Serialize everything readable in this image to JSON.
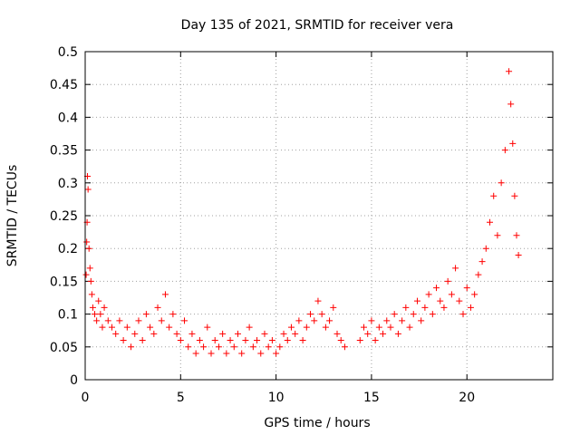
{
  "chart_data": {
    "type": "scatter",
    "title": "Day 135 of 2021, SRMTID for receiver vera",
    "xlabel": "GPS time / hours",
    "ylabel": "SRMTID / TECUs",
    "xlim": [
      0,
      24.5
    ],
    "ylim": [
      0,
      0.5
    ],
    "xticks": [
      0,
      5,
      10,
      15,
      20
    ],
    "xtick_labels": [
      "0",
      "5",
      "10",
      "15",
      "20"
    ],
    "yticks": [
      0,
      0.05,
      0.1,
      0.15,
      0.2,
      0.25,
      0.3,
      0.35,
      0.4,
      0.45,
      0.5
    ],
    "ytick_labels": [
      "0",
      "0.05",
      "0.1",
      "0.15",
      "0.2",
      "0.25",
      "0.3",
      "0.35",
      "0.4",
      "0.45",
      "0.5"
    ],
    "grid": true,
    "marker": "plus",
    "color": "#ff0000",
    "series": [
      {
        "name": "SRMTID",
        "points": [
          [
            0.05,
            0.16
          ],
          [
            0.08,
            0.21
          ],
          [
            0.1,
            0.24
          ],
          [
            0.12,
            0.31
          ],
          [
            0.15,
            0.29
          ],
          [
            0.2,
            0.2
          ],
          [
            0.25,
            0.17
          ],
          [
            0.3,
            0.15
          ],
          [
            0.35,
            0.13
          ],
          [
            0.4,
            0.11
          ],
          [
            0.5,
            0.1
          ],
          [
            0.6,
            0.09
          ],
          [
            0.7,
            0.12
          ],
          [
            0.8,
            0.1
          ],
          [
            0.9,
            0.08
          ],
          [
            1.0,
            0.11
          ],
          [
            1.2,
            0.09
          ],
          [
            1.4,
            0.08
          ],
          [
            1.6,
            0.07
          ],
          [
            1.8,
            0.09
          ],
          [
            2.0,
            0.06
          ],
          [
            2.2,
            0.08
          ],
          [
            2.4,
            0.05
          ],
          [
            2.6,
            0.07
          ],
          [
            2.8,
            0.09
          ],
          [
            3.0,
            0.06
          ],
          [
            3.2,
            0.1
          ],
          [
            3.4,
            0.08
          ],
          [
            3.6,
            0.07
          ],
          [
            3.8,
            0.11
          ],
          [
            4.0,
            0.09
          ],
          [
            4.2,
            0.13
          ],
          [
            4.4,
            0.08
          ],
          [
            4.6,
            0.1
          ],
          [
            4.8,
            0.07
          ],
          [
            5.0,
            0.06
          ],
          [
            5.2,
            0.09
          ],
          [
            5.4,
            0.05
          ],
          [
            5.6,
            0.07
          ],
          [
            5.8,
            0.04
          ],
          [
            6.0,
            0.06
          ],
          [
            6.2,
            0.05
          ],
          [
            6.4,
            0.08
          ],
          [
            6.6,
            0.04
          ],
          [
            6.8,
            0.06
          ],
          [
            7.0,
            0.05
          ],
          [
            7.2,
            0.07
          ],
          [
            7.4,
            0.04
          ],
          [
            7.6,
            0.06
          ],
          [
            7.8,
            0.05
          ],
          [
            8.0,
            0.07
          ],
          [
            8.2,
            0.04
          ],
          [
            8.4,
            0.06
          ],
          [
            8.6,
            0.08
          ],
          [
            8.8,
            0.05
          ],
          [
            9.0,
            0.06
          ],
          [
            9.2,
            0.04
          ],
          [
            9.4,
            0.07
          ],
          [
            9.6,
            0.05
          ],
          [
            9.8,
            0.06
          ],
          [
            10.0,
            0.04
          ],
          [
            10.2,
            0.05
          ],
          [
            10.4,
            0.07
          ],
          [
            10.6,
            0.06
          ],
          [
            10.8,
            0.08
          ],
          [
            11.0,
            0.07
          ],
          [
            11.2,
            0.09
          ],
          [
            11.4,
            0.06
          ],
          [
            11.6,
            0.08
          ],
          [
            11.8,
            0.1
          ],
          [
            12.0,
            0.09
          ],
          [
            12.2,
            0.12
          ],
          [
            12.4,
            0.1
          ],
          [
            12.6,
            0.08
          ],
          [
            12.8,
            0.09
          ],
          [
            13.0,
            0.11
          ],
          [
            13.2,
            0.07
          ],
          [
            13.4,
            0.06
          ],
          [
            13.6,
            0.05
          ],
          [
            14.4,
            0.06
          ],
          [
            14.6,
            0.08
          ],
          [
            14.8,
            0.07
          ],
          [
            15.0,
            0.09
          ],
          [
            15.2,
            0.06
          ],
          [
            15.4,
            0.08
          ],
          [
            15.6,
            0.07
          ],
          [
            15.8,
            0.09
          ],
          [
            16.0,
            0.08
          ],
          [
            16.2,
            0.1
          ],
          [
            16.4,
            0.07
          ],
          [
            16.6,
            0.09
          ],
          [
            16.8,
            0.11
          ],
          [
            17.0,
            0.08
          ],
          [
            17.2,
            0.1
          ],
          [
            17.4,
            0.12
          ],
          [
            17.6,
            0.09
          ],
          [
            17.8,
            0.11
          ],
          [
            18.0,
            0.13
          ],
          [
            18.2,
            0.1
          ],
          [
            18.4,
            0.14
          ],
          [
            18.6,
            0.12
          ],
          [
            18.8,
            0.11
          ],
          [
            19.0,
            0.15
          ],
          [
            19.2,
            0.13
          ],
          [
            19.4,
            0.17
          ],
          [
            19.6,
            0.12
          ],
          [
            19.8,
            0.1
          ],
          [
            20.0,
            0.14
          ],
          [
            20.2,
            0.11
          ],
          [
            20.4,
            0.13
          ],
          [
            20.6,
            0.16
          ],
          [
            20.8,
            0.18
          ],
          [
            21.0,
            0.2
          ],
          [
            21.2,
            0.24
          ],
          [
            21.4,
            0.28
          ],
          [
            21.6,
            0.22
          ],
          [
            21.8,
            0.3
          ],
          [
            22.0,
            0.35
          ],
          [
            22.2,
            0.47
          ],
          [
            22.3,
            0.42
          ],
          [
            22.4,
            0.36
          ],
          [
            22.5,
            0.28
          ],
          [
            22.6,
            0.22
          ],
          [
            22.7,
            0.19
          ]
        ]
      }
    ]
  }
}
